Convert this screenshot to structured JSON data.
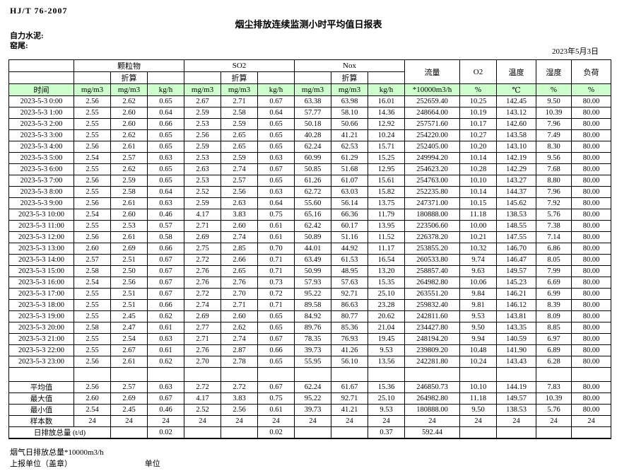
{
  "header": {
    "standard": "HJ/T  76-2007",
    "title": "烟尘排放连续监测小时平均值日报表",
    "company": "自力水泥:",
    "station": "窑尾:",
    "date": "2023年5月3日"
  },
  "table": {
    "time_label": "时间",
    "converted_label": "折算",
    "groups": [
      "颗粒物",
      "SO2",
      "Nox"
    ],
    "scalar_cols": [
      "流量",
      "O2",
      "温度",
      "湿度",
      "负荷"
    ],
    "units": [
      "mg/m3",
      "mg/m3",
      "kg/h",
      "mg/m3",
      "mg/m3",
      "kg/h",
      "mg/m3",
      "mg/m3",
      "kg/h",
      "*10000m3/h",
      "%",
      "℃",
      "%",
      "%"
    ],
    "rows": [
      {
        "time": "2023-5-3 0:00",
        "values": [
          "2.56",
          "2.62",
          "0.65",
          "2.67",
          "2.71",
          "0.67",
          "63.38",
          "63.98",
          "16.01",
          "252659.40",
          "10.25",
          "142.45",
          "9.50",
          "80.00"
        ]
      },
      {
        "time": "2023-5-3 1:00",
        "values": [
          "2.55",
          "2.60",
          "0.64",
          "2.59",
          "2.58",
          "0.64",
          "57.77",
          "58.10",
          "14.36",
          "248664.00",
          "10.19",
          "143.12",
          "10.39",
          "80.00"
        ]
      },
      {
        "time": "2023-5-3 2:00",
        "values": [
          "2.55",
          "2.60",
          "0.66",
          "2.53",
          "2.59",
          "0.65",
          "50.18",
          "50.66",
          "12.92",
          "257571.60",
          "10.17",
          "142.60",
          "7.96",
          "80.00"
        ]
      },
      {
        "time": "2023-5-3 3:00",
        "values": [
          "2.55",
          "2.62",
          "0.65",
          "2.56",
          "2.65",
          "0.65",
          "40.28",
          "41.21",
          "10.24",
          "254220.00",
          "10.27",
          "143.58",
          "7.49",
          "80.00"
        ]
      },
      {
        "time": "2023-5-3 4:00",
        "values": [
          "2.56",
          "2.61",
          "0.65",
          "2.59",
          "2.65",
          "0.65",
          "62.24",
          "62.53",
          "15.71",
          "252405.00",
          "10.20",
          "143.10",
          "8.30",
          "80.00"
        ]
      },
      {
        "time": "2023-5-3 5:00",
        "values": [
          "2.54",
          "2.57",
          "0.63",
          "2.53",
          "2.59",
          "0.63",
          "60.99",
          "61.29",
          "15.25",
          "249994.20",
          "10.14",
          "142.19",
          "9.56",
          "80.00"
        ]
      },
      {
        "time": "2023-5-3 6:00",
        "values": [
          "2.55",
          "2.62",
          "0.65",
          "2.63",
          "2.74",
          "0.67",
          "50.85",
          "51.68",
          "12.95",
          "254623.20",
          "10.28",
          "142.29",
          "7.68",
          "80.00"
        ]
      },
      {
        "time": "2023-5-3 7:00",
        "values": [
          "2.56",
          "2.59",
          "0.65",
          "2.53",
          "2.57",
          "0.65",
          "61.26",
          "61.07",
          "15.61",
          "254763.00",
          "10.10",
          "143.27",
          "8.80",
          "80.00"
        ]
      },
      {
        "time": "2023-5-3 8:00",
        "values": [
          "2.55",
          "2.58",
          "0.64",
          "2.52",
          "2.56",
          "0.63",
          "62.72",
          "63.03",
          "15.82",
          "252235.80",
          "10.14",
          "144.37",
          "7.96",
          "80.00"
        ]
      },
      {
        "time": "2023-5-3 9:00",
        "values": [
          "2.56",
          "2.61",
          "0.63",
          "2.59",
          "2.63",
          "0.64",
          "55.60",
          "56.14",
          "13.75",
          "247371.00",
          "10.15",
          "145.62",
          "7.92",
          "80.00"
        ]
      },
      {
        "time": "2023-5-3 10:00",
        "values": [
          "2.54",
          "2.60",
          "0.46",
          "4.17",
          "3.83",
          "0.75",
          "65.16",
          "66.36",
          "11.79",
          "180888.00",
          "11.18",
          "138.53",
          "5.76",
          "80.00"
        ]
      },
      {
        "time": "2023-5-3 11:00",
        "values": [
          "2.55",
          "2.53",
          "0.57",
          "2.71",
          "2.60",
          "0.61",
          "62.42",
          "60.17",
          "13.95",
          "223506.60",
          "10.00",
          "148.55",
          "7.38",
          "80.00"
        ]
      },
      {
        "time": "2023-5-3 12:00",
        "values": [
          "2.56",
          "2.61",
          "0.58",
          "2.69",
          "2.74",
          "0.61",
          "50.89",
          "51.16",
          "11.52",
          "226378.20",
          "10.21",
          "147.55",
          "7.14",
          "80.00"
        ]
      },
      {
        "time": "2023-5-3 13:00",
        "values": [
          "2.60",
          "2.69",
          "0.66",
          "2.75",
          "2.85",
          "0.70",
          "44.01",
          "44.92",
          "11.17",
          "253855.20",
          "10.32",
          "146.70",
          "6.86",
          "80.00"
        ]
      },
      {
        "time": "2023-5-3 14:00",
        "values": [
          "2.57",
          "2.51",
          "0.67",
          "2.72",
          "2.66",
          "0.71",
          "63.49",
          "61.53",
          "16.54",
          "260533.80",
          "9.74",
          "146.47",
          "8.05",
          "80.00"
        ]
      },
      {
        "time": "2023-5-3 15:00",
        "values": [
          "2.58",
          "2.50",
          "0.67",
          "2.76",
          "2.65",
          "0.71",
          "50.99",
          "48.95",
          "13.20",
          "258857.40",
          "9.63",
          "149.57",
          "7.99",
          "80.00"
        ]
      },
      {
        "time": "2023-5-3 16:00",
        "values": [
          "2.54",
          "2.56",
          "0.67",
          "2.76",
          "2.76",
          "0.73",
          "57.93",
          "57.63",
          "15.35",
          "264982.80",
          "10.06",
          "145.23",
          "6.69",
          "80.00"
        ]
      },
      {
        "time": "2023-5-3 17:00",
        "values": [
          "2.55",
          "2.51",
          "0.67",
          "2.72",
          "2.70",
          "0.72",
          "95.22",
          "92.71",
          "25.10",
          "263551.20",
          "9.84",
          "146.21",
          "6.99",
          "80.00"
        ]
      },
      {
        "time": "2023-5-3 18:00",
        "values": [
          "2.55",
          "2.51",
          "0.66",
          "2.74",
          "2.71",
          "0.71",
          "89.58",
          "86.63",
          "23.28",
          "259832.40",
          "9.81",
          "146.12",
          "8.39",
          "80.00"
        ]
      },
      {
        "time": "2023-5-3 19:00",
        "values": [
          "2.55",
          "2.45",
          "0.62",
          "2.69",
          "2.60",
          "0.65",
          "84.92",
          "80.77",
          "20.62",
          "242811.60",
          "9.53",
          "143.81",
          "8.09",
          "80.00"
        ]
      },
      {
        "time": "2023-5-3 20:00",
        "values": [
          "2.58",
          "2.47",
          "0.61",
          "2.77",
          "2.62",
          "0.65",
          "89.76",
          "85.36",
          "21.04",
          "234427.80",
          "9.50",
          "143.35",
          "8.85",
          "80.00"
        ]
      },
      {
        "time": "2023-5-3 21:00",
        "values": [
          "2.55",
          "2.54",
          "0.63",
          "2.71",
          "2.74",
          "0.67",
          "78.35",
          "76.93",
          "19.45",
          "248194.20",
          "9.94",
          "140.59",
          "6.97",
          "80.00"
        ]
      },
      {
        "time": "2023-5-3 22:00",
        "values": [
          "2.55",
          "2.67",
          "0.61",
          "2.76",
          "2.87",
          "0.66",
          "39.73",
          "41.26",
          "9.53",
          "239809.20",
          "10.48",
          "141.90",
          "6.89",
          "80.00"
        ]
      },
      {
        "time": "2023-5-3 23:00",
        "values": [
          "2.56",
          "2.61",
          "0.62",
          "2.70",
          "2.78",
          "0.65",
          "55.95",
          "56.10",
          "13.56",
          "242281.80",
          "10.24",
          "143.43",
          "6.28",
          "80.00"
        ]
      }
    ],
    "summary_rows": [
      {
        "label": "平均值",
        "values": [
          "2.56",
          "2.57",
          "0.63",
          "2.72",
          "2.72",
          "0.67",
          "62.24",
          "61.67",
          "15.36",
          "246850.73",
          "10.10",
          "144.19",
          "7.83",
          "80.00"
        ]
      },
      {
        "label": "最大值",
        "values": [
          "2.60",
          "2.69",
          "0.67",
          "4.17",
          "3.83",
          "0.75",
          "95.22",
          "92.71",
          "25.10",
          "264982.80",
          "11.18",
          "149.57",
          "10.39",
          "80.00"
        ]
      },
      {
        "label": "最小值",
        "values": [
          "2.54",
          "2.45",
          "0.46",
          "2.52",
          "2.56",
          "0.61",
          "39.73",
          "41.21",
          "9.53",
          "180888.00",
          "9.50",
          "138.53",
          "5.76",
          "80.00"
        ]
      },
      {
        "label": "样本数",
        "values": [
          "24",
          "24",
          "24",
          "24",
          "24",
          "24",
          "24",
          "24",
          "24",
          "24",
          "24",
          "24",
          "24",
          "24"
        ]
      }
    ],
    "daily_total": {
      "label": "日排放总量 (t/d)",
      "values": [
        "",
        "0.02",
        "",
        "",
        "0.02",
        "",
        "",
        "0.37",
        "592.44",
        "",
        "",
        "",
        ""
      ]
    }
  },
  "footer": {
    "flue_total": "烟气日排放总量*10000m3/h",
    "report_unit": "上报单位（盖章）",
    "unit": "单位"
  },
  "colors": {
    "header_green": "#ccffcc",
    "border": "#000000"
  }
}
